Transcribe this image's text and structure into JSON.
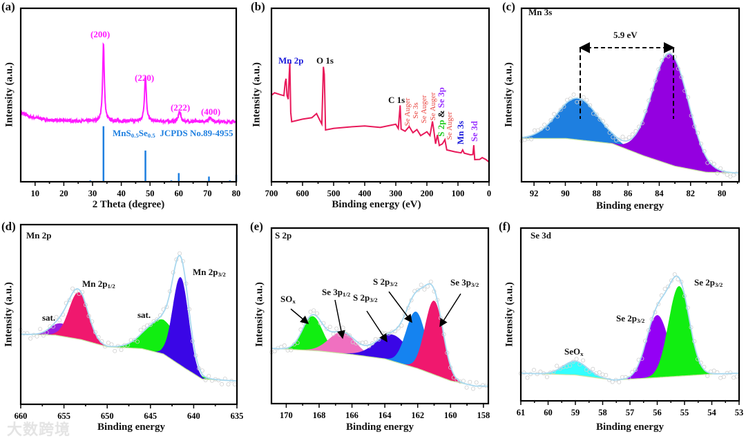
{
  "panels": {
    "a": {
      "tag": "(a)",
      "ylabel": "Intensity (a.u.)",
      "xlabel": "2 Theta (degree)",
      "peak_labels": [
        "(200)",
        "(220)",
        "(222)",
        "(400)"
      ],
      "ref_main": "MnS",
      "ref_sub1": "0.5",
      "ref_mid": "Se",
      "ref_sub2": "0.5",
      "ref_tail": "  JCPDS No.89-4955"
    },
    "b": {
      "tag": "(b)",
      "ylabel": "Intensity (a.u.)",
      "xlabel": "Binding energy (eV)",
      "labels": {
        "mn2p": "Mn 2p",
        "o1s": "O 1s",
        "c1s": "C 1s",
        "se_auger": "Se Auger",
        "se3s": "Se 3s",
        "s2p": "S 2p",
        "amp": " & ",
        "se3p": "Se 3p",
        "mn3s": "Mn 3s",
        "se3d": "Se 3d"
      }
    },
    "c": {
      "tag": "(c)",
      "title": "Mn 3s",
      "ylabel": "Intensity (a.u.)",
      "xlabel": "Binding energy",
      "split": "5.9 eV"
    },
    "d": {
      "tag": "(d)",
      "title": "Mn 2p",
      "ylabel": "Intensity (a.u.)",
      "xlabel": "Binding energy",
      "sat": "sat.",
      "p12_main": "Mn 2p",
      "p12_sub": "1/2",
      "p32_main": "Mn 2p",
      "p32_sub": "3/2"
    },
    "e": {
      "tag": "(e)",
      "title": "S 2p",
      "ylabel": "Intensity (a.u.)",
      "xlabel": "Binding energy",
      "sox_main": "SO",
      "sox_sub": "x",
      "se3p12_main": "Se 3p",
      "se3p12_sub": "1/2",
      "s2p32_main": "S 2p",
      "s2p32_sub": "3/2",
      "se3p32_main": "Se 3p",
      "se3p32_sub": "3/2"
    },
    "f": {
      "tag": "(f)",
      "title": "Se 3d",
      "ylabel": "Intensity (a.u.)",
      "xlabel": "Binding energy",
      "seox_main": "SeO",
      "seox_sub": "x",
      "se2p32_main": "Se 2p",
      "se2p32_sub": "3/2"
    }
  },
  "watermark": "大数跨境",
  "colors": {
    "xrd": "#ff1aff",
    "ref": "#1e7fe0",
    "survey": "#e8195a",
    "envelope": "#a9d8ef",
    "auger": "#e8413c",
    "green": "#22cc22",
    "purple": "#9933ff",
    "blue": "#1a1adb"
  },
  "chart_data": [
    {
      "id": "a",
      "type": "line",
      "title": "",
      "xlabel": "2 Theta (degree)",
      "ylabel": "Intensity (a.u.)",
      "xlim": [
        5,
        80
      ],
      "ylim": [
        0,
        100
      ],
      "xticks": [
        10,
        20,
        30,
        40,
        50,
        60,
        70,
        80
      ],
      "background": [
        [
          5,
          40
        ],
        [
          8,
          37.5
        ],
        [
          15,
          35.5
        ],
        [
          25,
          35
        ],
        [
          80,
          34.5
        ]
      ],
      "peaks": [
        {
          "label": "(200)",
          "center": 33.8,
          "height": 45,
          "width": 0.35
        },
        {
          "label": "(220)",
          "center": 48.4,
          "height": 26,
          "width": 0.4
        },
        {
          "label": "(222)",
          "center": 60.3,
          "height": 5.5,
          "width": 0.5
        },
        {
          "label": "(400)",
          "center": 71.0,
          "height": 2.5,
          "width": 0.7
        }
      ],
      "reference": {
        "name": "MnS0.5Se0.5 JCPDS No.89-4955",
        "sticks": [
          [
            29.2,
            0.8
          ],
          [
            33.8,
            32
          ],
          [
            48.4,
            18
          ],
          [
            57.4,
            0.8
          ],
          [
            60.0,
            5
          ],
          [
            70.5,
            3
          ],
          [
            77.8,
            0.8
          ],
          [
            80.0,
            4
          ]
        ]
      }
    },
    {
      "id": "b",
      "type": "line",
      "title": "",
      "xlabel": "Binding energy (eV)",
      "ylabel": "Intensity (a.u.)",
      "xlim": [
        700,
        0
      ],
      "ylim": [
        0,
        100
      ],
      "xticks": [
        700,
        600,
        500,
        400,
        300,
        200,
        100,
        0
      ],
      "points": [
        [
          700,
          50
        ],
        [
          690,
          51
        ],
        [
          670,
          50.5
        ],
        [
          660,
          50
        ],
        [
          656,
          57
        ],
        [
          653,
          59
        ],
        [
          650,
          50
        ],
        [
          646,
          48
        ],
        [
          643,
          62
        ],
        [
          641,
          69
        ],
        [
          638,
          40
        ],
        [
          635,
          34.5
        ],
        [
          600,
          36
        ],
        [
          570,
          37
        ],
        [
          555,
          39
        ],
        [
          545,
          36
        ],
        [
          538,
          33
        ],
        [
          533,
          66
        ],
        [
          530,
          62
        ],
        [
          526,
          30
        ],
        [
          500,
          31
        ],
        [
          450,
          31.5
        ],
        [
          400,
          32.5
        ],
        [
          350,
          31.5
        ],
        [
          300,
          33
        ],
        [
          292,
          31
        ],
        [
          286,
          44
        ],
        [
          283,
          30
        ],
        [
          270,
          29.5
        ],
        [
          257,
          31.5
        ],
        [
          245,
          28.5
        ],
        [
          232,
          30
        ],
        [
          220,
          27
        ],
        [
          200,
          28.5
        ],
        [
          190,
          26.5
        ],
        [
          182,
          35
        ],
        [
          178,
          30
        ],
        [
          172,
          22
        ],
        [
          166,
          27
        ],
        [
          160,
          21
        ],
        [
          150,
          21.5
        ],
        [
          142,
          24
        ],
        [
          136,
          18
        ],
        [
          110,
          17
        ],
        [
          90,
          17
        ],
        [
          85,
          18.5
        ],
        [
          80,
          16.5
        ],
        [
          60,
          15.5
        ],
        [
          52,
          16
        ],
        [
          49,
          21
        ],
        [
          46,
          13
        ],
        [
          30,
          13
        ],
        [
          22,
          13.8
        ],
        [
          10,
          12.5
        ],
        [
          0,
          11.5
        ]
      ]
    },
    {
      "id": "c",
      "type": "area",
      "title": "Mn 3s",
      "xlabel": "Binding energy",
      "ylabel": "Intensity (a.u.)",
      "xlim": [
        92.8,
        78.9
      ],
      "ylim": [
        0,
        100
      ],
      "xticks": [
        92,
        90,
        88,
        86,
        84,
        82,
        80
      ],
      "baseline": [
        [
          92.8,
          25
        ],
        [
          90,
          25
        ],
        [
          87,
          22
        ],
        [
          85,
          15
        ],
        [
          83,
          9
        ],
        [
          81,
          5.5
        ],
        [
          78.9,
          5
        ]
      ],
      "components": [
        {
          "center": 89.2,
          "height": 24,
          "sigma": 1.3,
          "color": "#1e7fe0"
        },
        {
          "center": 83.3,
          "height": 64,
          "sigma": 1.15,
          "color": "#9400e0"
        }
      ],
      "annotation": {
        "text": "5.9 eV",
        "from": 89.2,
        "to": 83.3
      }
    },
    {
      "id": "d",
      "type": "area",
      "title": "Mn 2p",
      "xlabel": "Binding energy",
      "ylabel": "Intensity (a.u.)",
      "xlim": [
        660,
        635
      ],
      "ylim": [
        0,
        100
      ],
      "xticks": [
        660,
        655,
        650,
        645,
        640,
        635
      ],
      "baseline": [
        [
          660,
          39
        ],
        [
          656,
          38.5
        ],
        [
          653,
          36
        ],
        [
          650,
          32
        ],
        [
          646,
          31
        ],
        [
          643.5,
          28
        ],
        [
          641,
          20
        ],
        [
          639,
          14
        ],
        [
          635,
          13
        ]
      ],
      "components": [
        {
          "label": "sat.",
          "center": 655.3,
          "height": 7,
          "sigma": 1.2,
          "color": "#9b1de0"
        },
        {
          "label": "Mn 2p1/2",
          "center": 653.3,
          "height": 26,
          "sigma": 1.1,
          "color": "#f0186e"
        },
        {
          "label": "sat.",
          "center": 643.5,
          "height": 19,
          "sigma": 2.0,
          "color": "#11ee11"
        },
        {
          "label": "Mn 2p3/2",
          "center": 641.5,
          "height": 49,
          "sigma": 0.9,
          "color": "#3a06e6"
        }
      ]
    },
    {
      "id": "e",
      "type": "area",
      "title": "S 2p",
      "xlabel": "Binding energy",
      "ylabel": "Intensity (a.u.)",
      "xlim": [
        170.9,
        157.7
      ],
      "ylim": [
        0,
        100
      ],
      "xticks": [
        170,
        168,
        166,
        164,
        162,
        160,
        158
      ],
      "baseline": [
        [
          170.9,
          31.5
        ],
        [
          168,
          30
        ],
        [
          166,
          28
        ],
        [
          164,
          25.5
        ],
        [
          162,
          20
        ],
        [
          160,
          13
        ],
        [
          158.5,
          10
        ],
        [
          157.7,
          10
        ]
      ],
      "components": [
        {
          "label": "SOx",
          "center": 168.4,
          "height": 19.5,
          "sigma": 0.6,
          "color": "#11ee11"
        },
        {
          "label": "Se 3p1/2",
          "center": 166.6,
          "height": 12,
          "sigma": 0.8,
          "color": "#f070c0"
        },
        {
          "label": "S 2p3/2",
          "center": 163.5,
          "height": 15,
          "sigma": 1.0,
          "color": "#3a06e6"
        },
        {
          "label": "S 2p3/2",
          "center": 162.1,
          "height": 32,
          "sigma": 0.6,
          "color": "#1583f0"
        },
        {
          "label": "Se 3p3/2",
          "center": 161.0,
          "height": 42,
          "sigma": 0.55,
          "color": "#f0186e"
        }
      ]
    },
    {
      "id": "f",
      "type": "area",
      "title": "Se 3d",
      "xlabel": "Binding energy",
      "ylabel": "Intensity (a.u.)",
      "xlim": [
        61,
        53
      ],
      "ylim": [
        0,
        100
      ],
      "xticks": [
        61,
        60,
        59,
        58,
        57,
        56,
        55,
        54,
        53
      ],
      "baseline": [
        [
          61,
          16
        ],
        [
          59,
          15
        ],
        [
          57.6,
          12
        ],
        [
          56,
          13.5
        ],
        [
          54,
          15.5
        ],
        [
          53,
          16
        ]
      ],
      "components": [
        {
          "label": "SeOx",
          "center": 59.0,
          "height": 8,
          "sigma": 0.45,
          "color": "#33ffff"
        },
        {
          "label": "Se 2p3/2",
          "center": 56.0,
          "height": 36,
          "sigma": 0.4,
          "color": "#9400f5"
        },
        {
          "label": "Se 2p3/2",
          "center": 55.2,
          "height": 52,
          "sigma": 0.38,
          "color": "#11ee11"
        }
      ]
    }
  ]
}
